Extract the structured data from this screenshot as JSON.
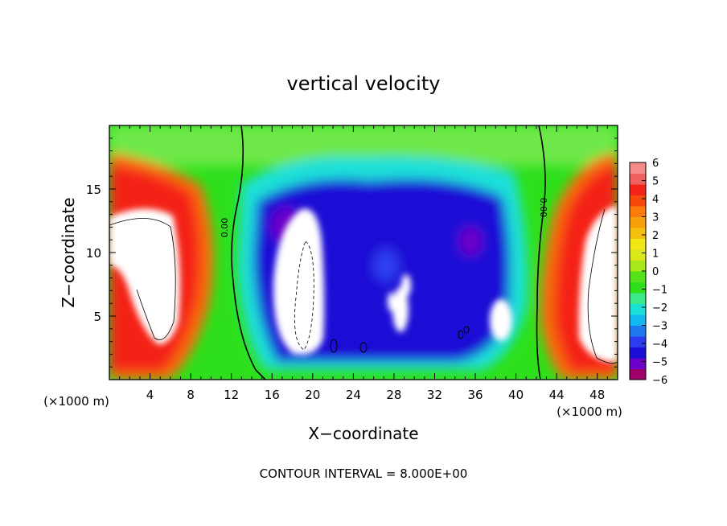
{
  "chart_data": {
    "type": "heatmap",
    "title": "vertical velocity",
    "xlabel": "X−coordinate",
    "ylabel": "Z−coordinate",
    "x_unit_left": "(×1000 m)",
    "x_unit_right": "(×1000 m)",
    "xlim": [
      0,
      50
    ],
    "ylim": [
      0,
      20
    ],
    "xticks": [
      4,
      8,
      12,
      16,
      20,
      24,
      28,
      32,
      36,
      40,
      44,
      48
    ],
    "yticks": [
      5,
      10,
      15
    ],
    "footer": "CONTOUR INTERVAL = 8.000E+00",
    "contour_label_left": "0.00",
    "contour_label_right": "0.00",
    "colorbar": {
      "range": [
        -6,
        6
      ],
      "ticks": [
        "6",
        "5",
        "4",
        "3",
        "2",
        "1",
        "0",
        "−1",
        "−2",
        "−3",
        "−4",
        "−5",
        "−6"
      ],
      "colors": [
        "#a0006a",
        "#6c00c8",
        "#1a0dd6",
        "#2e3cf0",
        "#1f78f0",
        "#12b6f0",
        "#1be0d8",
        "#3de88a",
        "#2ee01c",
        "#55e21a",
        "#a8e81a",
        "#d8e81a",
        "#f0e614",
        "#f6c010",
        "#f8a00c",
        "#fa7a0a",
        "#f64a0a",
        "#f42418",
        "#f06060",
        "#f48a8a"
      ]
    },
    "features": [
      {
        "kind": "updraft_core",
        "x_range": [
          0,
          10
        ],
        "z_range": [
          1,
          17
        ],
        "sign": "positive"
      },
      {
        "kind": "downdraft_core",
        "x_range": [
          15,
          22
        ],
        "z_range": [
          1.5,
          14
        ],
        "sign": "negative"
      },
      {
        "kind": "downdraft_core",
        "x_range": [
          27,
          31
        ],
        "z_range": [
          3,
          8
        ],
        "sign": "negative"
      },
      {
        "kind": "downdraft_core",
        "x_range": [
          37,
          40
        ],
        "z_range": [
          2,
          6.5
        ],
        "sign": "negative"
      },
      {
        "kind": "updraft_core",
        "x_range": [
          42,
          50
        ],
        "z_range": [
          1,
          17
        ],
        "sign": "positive"
      }
    ]
  }
}
